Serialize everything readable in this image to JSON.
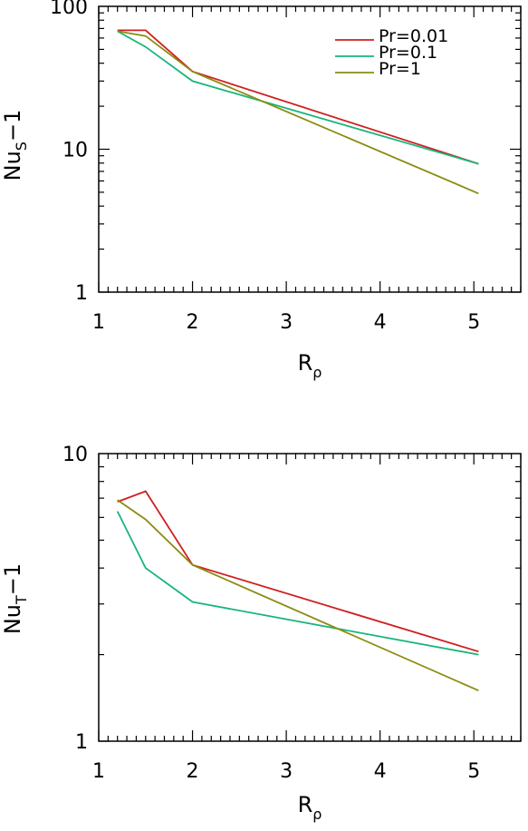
{
  "chart_data": [
    {
      "type": "line",
      "ylabel": {
        "main": "Nu",
        "sub": "S",
        "suffix": "−1"
      },
      "xlabel": {
        "main": "R",
        "sub": "ρ"
      },
      "xlim": [
        1,
        5.5
      ],
      "ylim": [
        1,
        100
      ],
      "yscale": "log",
      "xticks": [
        1,
        2,
        3,
        4,
        5
      ],
      "xtick_labels": [
        "1",
        "2",
        "3",
        "4",
        "5"
      ],
      "yticks": [
        1,
        10,
        100
      ],
      "ytick_labels": [
        "1",
        "10",
        "100"
      ],
      "legend": "top-right",
      "series": [
        {
          "name": "Pr=0.01",
          "color": "#d11f1f",
          "x": [
            1.2,
            1.5,
            2.0,
            5.05
          ],
          "y": [
            68,
            68,
            35,
            7.9
          ]
        },
        {
          "name": "Pr=0.1",
          "color": "#19b57a",
          "x": [
            1.2,
            1.5,
            2.0,
            5.05
          ],
          "y": [
            67,
            52,
            30,
            7.9
          ]
        },
        {
          "name": "Pr=1",
          "color": "#8c8c14",
          "x": [
            1.2,
            1.5,
            2.0,
            5.05
          ],
          "y": [
            67,
            62,
            35,
            4.9
          ]
        }
      ]
    },
    {
      "type": "line",
      "ylabel": {
        "main": "Nu",
        "sub": "T",
        "suffix": "−1"
      },
      "xlabel": {
        "main": "R",
        "sub": "ρ"
      },
      "xlim": [
        1,
        5.5
      ],
      "ylim": [
        1,
        10
      ],
      "yscale": "log",
      "xticks": [
        1,
        2,
        3,
        4,
        5
      ],
      "xtick_labels": [
        "1",
        "2",
        "3",
        "4",
        "5"
      ],
      "yticks": [
        1,
        10
      ],
      "ytick_labels": [
        "1",
        "10"
      ],
      "series": [
        {
          "color": "#d11f1f",
          "x": [
            1.2,
            1.5,
            2.0,
            5.05
          ],
          "y": [
            6.8,
            7.4,
            4.1,
            2.05
          ]
        },
        {
          "color": "#19b57a",
          "x": [
            1.2,
            1.5,
            2.0,
            5.05
          ],
          "y": [
            6.3,
            4.0,
            3.05,
            2.0
          ]
        },
        {
          "color": "#8c8c14",
          "x": [
            1.2,
            1.5,
            2.0,
            5.05
          ],
          "y": [
            6.9,
            5.9,
            4.1,
            1.5
          ]
        }
      ]
    }
  ]
}
